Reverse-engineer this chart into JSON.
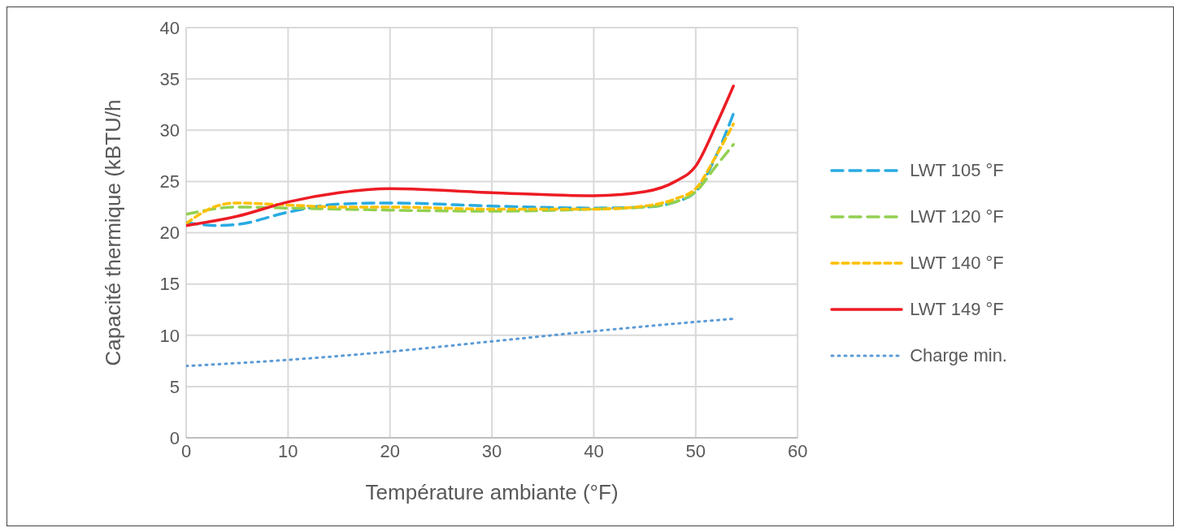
{
  "chart_data": {
    "type": "line",
    "xlabel": "Température ambiante (°F)",
    "ylabel": "Capacité thermique (kBTU/h",
    "xlim": [
      0,
      60
    ],
    "xticks": [
      0,
      10,
      20,
      30,
      40,
      50,
      60
    ],
    "ylim": [
      0,
      40
    ],
    "yticks": [
      0,
      5,
      10,
      15,
      20,
      25,
      30,
      35,
      40
    ],
    "grid": true,
    "legend": "right",
    "marker": "none",
    "series": [
      {
        "name": "LWT 105 °F",
        "color": "#29abe2",
        "line_style": "dashed",
        "x": [
          0,
          3,
          5,
          10,
          15,
          20,
          30,
          40,
          45,
          48,
          50,
          52,
          53.7
        ],
        "values": [
          21.0,
          20.7,
          20.8,
          22.0,
          22.8,
          22.9,
          22.6,
          22.4,
          22.5,
          23.0,
          24.0,
          27.5,
          31.6
        ]
      },
      {
        "name": "LWT 120 °F",
        "color": "#92d050",
        "line_style": "dashed",
        "x": [
          0,
          5,
          10,
          15,
          20,
          30,
          40,
          45,
          48,
          50,
          52,
          53.7
        ],
        "values": [
          21.8,
          22.5,
          22.4,
          22.3,
          22.2,
          22.1,
          22.3,
          22.5,
          23.0,
          24.0,
          26.5,
          28.6
        ]
      },
      {
        "name": "LWT 140 °F",
        "color": "#ffc000",
        "line_style": "short-dashed",
        "x": [
          0,
          3,
          5,
          10,
          15,
          20,
          30,
          40,
          45,
          48,
          50,
          52,
          53.7
        ],
        "values": [
          20.9,
          22.6,
          22.9,
          22.7,
          22.5,
          22.5,
          22.3,
          22.3,
          22.6,
          23.3,
          24.3,
          27.5,
          30.6
        ]
      },
      {
        "name": "LWT 149 °F",
        "color": "#ed1c24",
        "line_style": "solid",
        "x": [
          0,
          5,
          10,
          15,
          20,
          30,
          40,
          45,
          48,
          50,
          52,
          53.7
        ],
        "values": [
          20.7,
          21.6,
          23.0,
          23.9,
          24.3,
          23.9,
          23.6,
          24.0,
          25.0,
          26.5,
          30.5,
          34.3
        ]
      },
      {
        "name": "Charge min.",
        "color": "#5b9bd5",
        "line_style": "dotted",
        "x": [
          0,
          10,
          20,
          30,
          40,
          50,
          53.7
        ],
        "values": [
          7.0,
          7.6,
          8.4,
          9.4,
          10.4,
          11.3,
          11.6
        ]
      }
    ]
  }
}
